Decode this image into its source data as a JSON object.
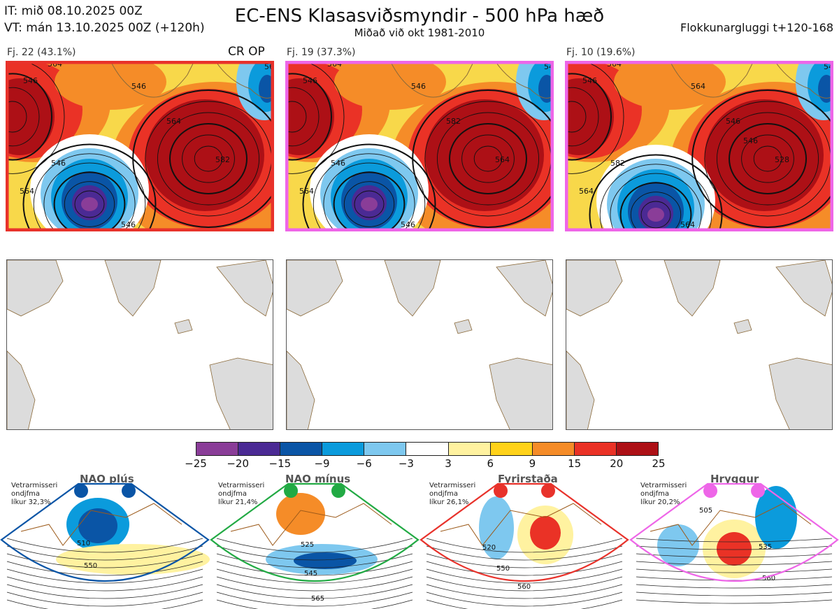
{
  "header": {
    "it_line": "IT: mið 08.10.2025 00Z",
    "vt_line": "VT: mán 13.10.2025 00Z  (+120h)",
    "title": "EC-ENS Klasasviðsmyndir - 500 hPa hæð",
    "subtitle": "Miðað við okt 1981-2010",
    "window": "Flokkunargluggi t+120-168"
  },
  "panels": [
    {
      "label": "Fj. 22 (43.1%)",
      "tag": "CR OP",
      "border_color": "#e8322b",
      "contours": [
        "546",
        "564",
        "546",
        "564",
        "582",
        "546",
        "564",
        "546",
        "564"
      ]
    },
    {
      "label": "Fj. 19 (37.3%)",
      "tag": "",
      "border_color": "#ee66e8",
      "contours": [
        "546",
        "564",
        "546",
        "582",
        "564",
        "546",
        "564",
        "546",
        "546"
      ]
    },
    {
      "label": "Fj. 10 (19.6%)",
      "tag": "",
      "border_color": "#ee66e8",
      "contours": [
        "546",
        "564",
        "564",
        "546",
        "528",
        "582",
        "564",
        "564",
        "546",
        "546"
      ]
    }
  ],
  "chart_data": {
    "type": "heatmap",
    "title": "EC-ENS Klasasviðsmyndir - 500 hPa hæð",
    "colorbar": {
      "ticks": [
        "−25",
        "−20",
        "−15",
        "−9",
        "−6",
        "−3",
        "3",
        "6",
        "9",
        "15",
        "20",
        "25"
      ],
      "colors": [
        "#8a3d98",
        "#4b2a94",
        "#0a55a6",
        "#0b9bdc",
        "#7ec8ef",
        "#ffffff",
        "#fff2a0",
        "#ffd21a",
        "#f58c28",
        "#ea3226",
        "#ad1016"
      ]
    },
    "regimes": [
      {
        "name": "NAO plús",
        "lines": [
          "Vetrarmisseri",
          "ondjfma",
          "líkur 32,3%"
        ],
        "color": "#0a55a6",
        "contours": [
          "510",
          "550"
        ]
      },
      {
        "name": "NAO mínus",
        "lines": [
          "Vetrarmisseri",
          "ondjfma",
          "líkur 21,4%"
        ],
        "color": "#22aa44",
        "contours": [
          "525",
          "545",
          "565"
        ]
      },
      {
        "name": "Fyrirstaða",
        "lines": [
          "Vetrarmisseri",
          "ondjfma",
          "líkur 26,1%"
        ],
        "color": "#e8322b",
        "contours": [
          "520",
          "550",
          "560"
        ]
      },
      {
        "name": "Hryggur",
        "lines": [
          "Vetrarmisseri",
          "ondjfma",
          "líkur 20,2%"
        ],
        "color": "#ee66e8",
        "contours": [
          "505",
          "535",
          "560"
        ]
      }
    ]
  }
}
